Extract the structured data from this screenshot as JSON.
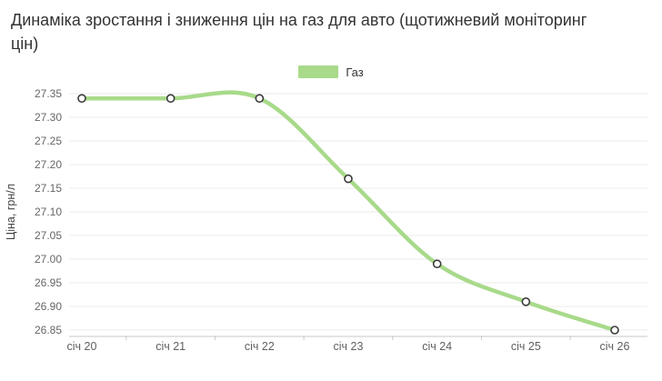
{
  "title": "Динаміка зростання і зниження цін на газ для авто (щотижневий моніторинг цін)",
  "legend": {
    "label": "Газ",
    "color": "#a8da8a"
  },
  "chart_data": {
    "type": "line",
    "x": [
      "січ 20",
      "січ 21",
      "січ 22",
      "січ 23",
      "січ 24",
      "січ 25",
      "січ 26"
    ],
    "series": [
      {
        "name": "Газ",
        "values": [
          27.34,
          27.34,
          27.34,
          27.17,
          26.99,
          26.91,
          26.85
        ]
      }
    ],
    "title": "Динаміка зростання і зниження цін на газ для авто (щотижневий моніторинг цін)",
    "xlabel": "",
    "ylabel": "Ціна, грн/л",
    "yticks": [
      27.35,
      27.3,
      27.25,
      27.2,
      27.15,
      27.1,
      27.05,
      27.0,
      26.95,
      26.9,
      26.85
    ],
    "ylim": [
      26.85,
      27.35
    ],
    "grid": true,
    "legend_position": "top",
    "line_color": "#a8da8a",
    "point_fill": "#ffffff",
    "point_stroke": "#3b3b3b",
    "grid_color": "#ebebeb",
    "axis_color": "#c9c9c9",
    "tick_label_color": "#666666"
  }
}
